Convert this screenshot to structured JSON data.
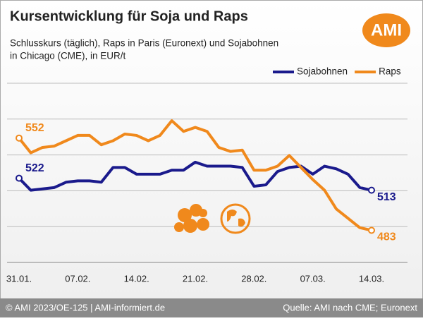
{
  "logo": "AMI",
  "footer": {
    "left": "© AMI 2023/OE-125 | AMI-informiert.de",
    "right": "Quelle: AMI nach CME; Euronext"
  },
  "chart_data": {
    "type": "line",
    "title": "Kursentwicklung für Soja und Raps",
    "subtitle": [
      "Schlusskurs (täglich), Raps in Paris (Euronext) und Sojabohnen",
      "in Chicago (CME), in EUR/t"
    ],
    "categories": [
      "31.01.",
      null,
      null,
      null,
      null,
      "07.02.",
      null,
      null,
      null,
      null,
      "14.02.",
      null,
      null,
      null,
      null,
      "21.02.",
      null,
      null,
      null,
      null,
      "28.02.",
      null,
      null,
      null,
      null,
      "07.03.",
      null,
      null,
      null,
      null,
      "14.03."
    ],
    "ylim": [
      459,
      593
    ],
    "grid": true,
    "legend": "top-right",
    "series": [
      {
        "name": "Sojabohnen",
        "color": "#1a1a8c",
        "values": [
          522,
          513,
          514,
          515,
          519,
          520,
          520,
          519,
          530,
          530,
          525,
          525,
          525,
          528,
          528,
          534,
          531,
          531,
          531,
          530,
          516,
          517,
          527,
          530,
          531,
          525,
          531,
          529,
          525,
          515,
          513
        ]
      },
      {
        "name": "Raps",
        "color": "#f0891c",
        "values": [
          552,
          541,
          545,
          546,
          550,
          554,
          554,
          547,
          550,
          555,
          554,
          550,
          554,
          565,
          557,
          560,
          557,
          545,
          542,
          543,
          528,
          528,
          531,
          539,
          530,
          521,
          513,
          499,
          492,
          485,
          483
        ]
      }
    ]
  }
}
